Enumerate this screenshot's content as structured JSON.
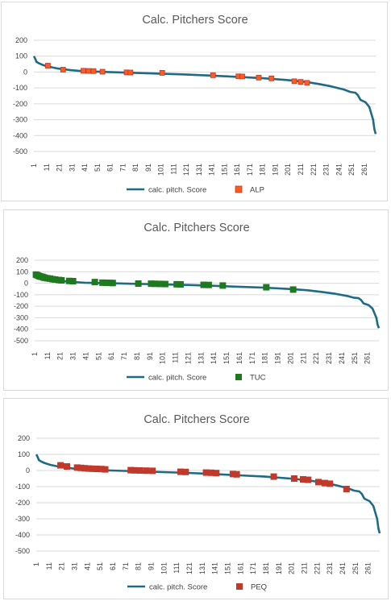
{
  "chart_data": [
    {
      "type": "line",
      "title": "Calc. Pitchers Score",
      "xlabel": "",
      "ylabel": "",
      "ylim": [
        -500,
        200
      ],
      "yticks": [
        200,
        100,
        0,
        -100,
        -200,
        -300,
        -400,
        -500
      ],
      "xticks": [
        1,
        11,
        21,
        31,
        41,
        51,
        61,
        71,
        81,
        91,
        101,
        111,
        121,
        131,
        141,
        151,
        161,
        171,
        181,
        191,
        201,
        211,
        221,
        231,
        241,
        251,
        261
      ],
      "legend_position": "bottom",
      "gridlines": true,
      "series": [
        {
          "name": "calc. pitch. Score",
          "kind": "line",
          "color": "#1f6a85",
          "x": [
            1,
            2,
            3,
            5,
            8,
            12,
            20,
            30,
            40,
            60,
            80,
            100,
            120,
            140,
            160,
            180,
            200,
            215,
            225,
            235,
            245,
            250,
            254,
            256,
            258,
            262,
            265,
            268,
            269,
            270
          ],
          "y": [
            100,
            85,
            65,
            55,
            45,
            35,
            22,
            12,
            5,
            0,
            -5,
            -10,
            -15,
            -22,
            -30,
            -38,
            -50,
            -62,
            -75,
            -90,
            -110,
            -125,
            -130,
            -145,
            -175,
            -190,
            -220,
            -300,
            -360,
            -390
          ]
        },
        {
          "name": "ALP",
          "kind": "marker",
          "color": "#ff5a1f",
          "x": [
            12,
            24,
            40,
            44,
            48,
            55,
            74,
            77,
            102,
            142,
            162,
            165,
            178,
            188,
            206,
            211,
            216
          ],
          "y": [
            40,
            15,
            8,
            7,
            6,
            2,
            -2,
            -3,
            -5,
            -20,
            -27,
            -28,
            -35,
            -40,
            -58,
            -62,
            -68
          ]
        }
      ]
    },
    {
      "type": "line",
      "title": "Calc. Pitchers Score",
      "xlabel": "",
      "ylabel": "",
      "ylim": [
        -500,
        200
      ],
      "yticks": [
        200,
        100,
        0,
        -100,
        -200,
        -300,
        -400,
        -500
      ],
      "xticks": [
        1,
        11,
        21,
        31,
        41,
        51,
        61,
        71,
        81,
        91,
        101,
        111,
        121,
        131,
        141,
        151,
        161,
        171,
        181,
        191,
        201,
        211,
        221,
        231,
        241,
        251,
        261
      ],
      "legend_position": "bottom",
      "gridlines": true,
      "series": [
        {
          "name": "calc. pitch. Score",
          "kind": "line",
          "color": "#1f6a85",
          "x": [
            1,
            2,
            3,
            5,
            8,
            12,
            20,
            30,
            40,
            60,
            80,
            100,
            120,
            140,
            160,
            180,
            200,
            215,
            225,
            235,
            245,
            250,
            254,
            256,
            258,
            262,
            265,
            268,
            269,
            270
          ],
          "y": [
            100,
            85,
            65,
            55,
            45,
            35,
            22,
            12,
            5,
            0,
            -5,
            -10,
            -15,
            -22,
            -30,
            -38,
            -50,
            -62,
            -75,
            -90,
            -110,
            -125,
            -130,
            -145,
            -175,
            -190,
            -220,
            -300,
            -360,
            -390
          ]
        },
        {
          "name": "TUC",
          "kind": "marker",
          "color": "#1f7a1f",
          "x": [
            2,
            3,
            4,
            5,
            6,
            7,
            8,
            9,
            11,
            13,
            15,
            17,
            20,
            22,
            28,
            31,
            48,
            54,
            57,
            60,
            62,
            82,
            92,
            95,
            99,
            103,
            112,
            115,
            133,
            137,
            148,
            182,
            203
          ],
          "y": [
            75,
            70,
            65,
            60,
            57,
            55,
            50,
            47,
            43,
            40,
            35,
            32,
            28,
            25,
            20,
            18,
            10,
            5,
            4,
            3,
            2,
            -3,
            -4,
            -5,
            -6,
            -7,
            -9,
            -10,
            -14,
            -15,
            -20,
            -35,
            -55
          ]
        }
      ]
    },
    {
      "type": "line",
      "title": "Calc. Pitchers Score",
      "xlabel": "",
      "ylabel": "",
      "ylim": [
        -500,
        200
      ],
      "yticks": [
        200,
        100,
        0,
        -100,
        -200,
        -300,
        -400,
        -500
      ],
      "xticks": [
        1,
        11,
        21,
        31,
        41,
        51,
        61,
        71,
        81,
        91,
        101,
        111,
        121,
        131,
        141,
        151,
        161,
        171,
        181,
        191,
        201,
        211,
        221,
        231,
        241,
        251,
        261
      ],
      "legend_position": "bottom",
      "gridlines": true,
      "series": [
        {
          "name": "calc. pitch. Score",
          "kind": "line",
          "color": "#1f6a85",
          "x": [
            1,
            2,
            3,
            5,
            8,
            12,
            20,
            30,
            40,
            60,
            80,
            100,
            120,
            140,
            160,
            180,
            200,
            215,
            225,
            235,
            245,
            250,
            254,
            256,
            258,
            262,
            265,
            268,
            269,
            270
          ],
          "y": [
            100,
            85,
            65,
            55,
            45,
            35,
            22,
            12,
            5,
            0,
            -5,
            -10,
            -15,
            -22,
            -30,
            -38,
            -50,
            -62,
            -75,
            -90,
            -110,
            -125,
            -130,
            -145,
            -175,
            -190,
            -220,
            -300,
            -360,
            -390
          ]
        },
        {
          "name": "PEQ",
          "kind": "marker",
          "color": "#c0392b",
          "x": [
            20,
            25,
            33,
            36,
            39,
            42,
            45,
            48,
            52,
            55,
            75,
            78,
            82,
            87,
            92,
            114,
            118,
            134,
            138,
            142,
            155,
            158,
            187,
            203,
            210,
            214,
            222,
            227,
            231,
            244
          ],
          "y": [
            32,
            25,
            18,
            16,
            14,
            12,
            11,
            10,
            9,
            7,
            2,
            1,
            0,
            -1,
            -2,
            -8,
            -9,
            -13,
            -14,
            -16,
            -22,
            -24,
            -38,
            -50,
            -55,
            -58,
            -72,
            -78,
            -82,
            -115
          ]
        }
      ]
    }
  ]
}
